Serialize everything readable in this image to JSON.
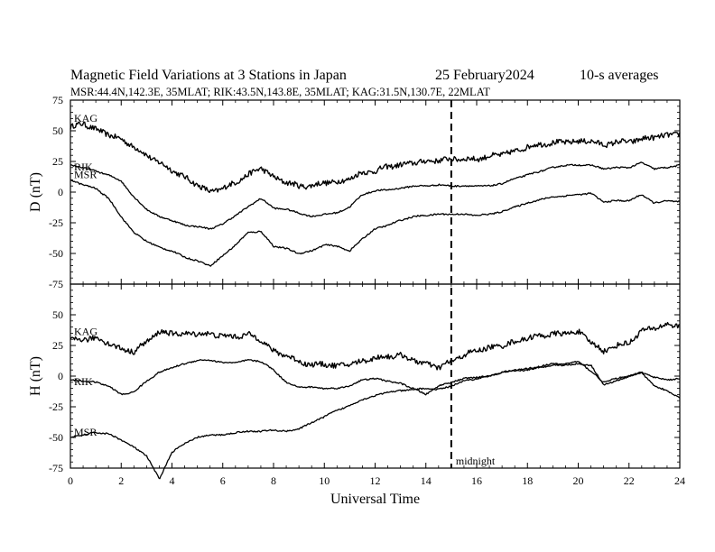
{
  "header": {
    "title": "Magnetic Field Variations at 3 Stations in Japan",
    "date": "25 February2024",
    "averaging": "10-s averages",
    "stations_line": "MSR:44.4N,142.3E, 35MLAT;  RIK:43.5N,143.8E, 35MLAT;  KAG:31.5N,130.7E, 22MLAT"
  },
  "annotation": {
    "midnight_label": "midnight",
    "midnight_ut": 15
  },
  "chart_data": [
    {
      "type": "line",
      "panel": "D",
      "ylabel": "D (nT)",
      "xlabel": "",
      "xlim": [
        0,
        24
      ],
      "ylim": [
        -75,
        75
      ],
      "yticks": [
        75,
        50,
        25,
        0,
        -25,
        -50,
        -75
      ],
      "ytick_labels": [
        "75",
        "50",
        "25",
        "0",
        "-25",
        "-50",
        "-75"
      ],
      "x": [
        0,
        0.5,
        1,
        1.5,
        2,
        2.5,
        3,
        3.5,
        4,
        4.5,
        5,
        5.5,
        6,
        6.5,
        7,
        7.5,
        8,
        8.5,
        9,
        9.5,
        10,
        10.5,
        11,
        11.5,
        12,
        12.5,
        13,
        13.5,
        14,
        14.5,
        15,
        15.5,
        16,
        16.5,
        17,
        17.5,
        18,
        18.5,
        19,
        19.5,
        20,
        20.5,
        21,
        21.5,
        22,
        22.5,
        23,
        23.5,
        24
      ],
      "series": [
        {
          "name": "KAG",
          "noise": 2.2,
          "values": [
            53,
            56,
            51,
            47,
            43,
            37,
            30,
            24,
            18,
            12,
            6,
            0,
            3,
            8,
            14,
            20,
            12,
            8,
            5,
            5,
            8,
            8,
            11,
            16,
            17,
            21,
            22,
            24,
            25,
            26,
            27,
            27,
            27,
            29,
            31,
            33,
            37,
            39,
            40,
            41,
            41,
            42,
            38,
            41,
            41,
            43,
            45,
            46,
            48
          ]
        },
        {
          "name": "RIK",
          "noise": 0.6,
          "values": [
            22,
            20,
            17,
            14,
            9,
            -4,
            -14,
            -20,
            -23,
            -27,
            -28,
            -30,
            -26,
            -19,
            -12,
            -5,
            -13,
            -14,
            -17,
            -20,
            -18,
            -17,
            -12,
            -2,
            1,
            2,
            3,
            5,
            5,
            6,
            5,
            5,
            5,
            5,
            7,
            11,
            14,
            17,
            20,
            22,
            22,
            22,
            19,
            20,
            20,
            24,
            19,
            20,
            22
          ]
        },
        {
          "name": "MSR",
          "noise": 0.6,
          "values": [
            10,
            6,
            3,
            -5,
            -20,
            -33,
            -40,
            -45,
            -48,
            -53,
            -56,
            -60,
            -52,
            -43,
            -33,
            -32,
            -44,
            -46,
            -50,
            -48,
            -43,
            -44,
            -48,
            -38,
            -30,
            -27,
            -23,
            -20,
            -19,
            -18,
            -18,
            -18,
            -19,
            -18,
            -16,
            -12,
            -9,
            -6,
            -4,
            -3,
            -2,
            -1,
            -8,
            -7,
            -7,
            -2,
            -9,
            -7,
            -8
          ]
        }
      ]
    },
    {
      "type": "line",
      "panel": "H",
      "ylabel": "H (nT)",
      "xlabel": "Universal Time",
      "xlim": [
        0,
        24
      ],
      "ylim": [
        -75,
        75
      ],
      "yticks": [
        75,
        50,
        25,
        0,
        -25,
        -50,
        -75
      ],
      "ytick_labels": [
        "",
        "50",
        "25",
        "0",
        "-25",
        "-50",
        "-75"
      ],
      "xticks": [
        0,
        2,
        4,
        6,
        8,
        10,
        12,
        14,
        16,
        18,
        20,
        22,
        24
      ],
      "xtick_labels": [
        "0",
        "2",
        "4",
        "6",
        "8",
        "10",
        "12",
        "14",
        "16",
        "18",
        "20",
        "22",
        "24"
      ],
      "x": [
        0,
        0.5,
        1,
        1.5,
        2,
        2.5,
        3,
        3.5,
        4,
        4.5,
        5,
        5.5,
        6,
        6.5,
        7,
        7.5,
        8,
        8.5,
        9,
        9.5,
        10,
        10.5,
        11,
        11.5,
        12,
        12.5,
        13,
        13.5,
        14,
        14.5,
        15,
        15.5,
        16,
        16.5,
        17,
        17.5,
        18,
        18.5,
        19,
        19.5,
        20,
        20.5,
        21,
        21.5,
        22,
        22.5,
        23,
        23.5,
        24
      ],
      "series": [
        {
          "name": "KAG",
          "noise": 2.2,
          "values": [
            29,
            30,
            31,
            27,
            22,
            20,
            28,
            36,
            35,
            34,
            35,
            34,
            33,
            32,
            34,
            30,
            20,
            17,
            12,
            9,
            10,
            8,
            10,
            12,
            15,
            16,
            17,
            13,
            10,
            7,
            12,
            17,
            21,
            23,
            25,
            28,
            31,
            33,
            34,
            35,
            36,
            28,
            20,
            25,
            27,
            37,
            39,
            42,
            41
          ]
        },
        {
          "name": "RIK",
          "noise": 0.6,
          "values": [
            -3,
            -4,
            -5,
            -8,
            -15,
            -13,
            -4,
            3,
            7,
            10,
            13,
            13,
            11,
            11,
            13,
            12,
            5,
            -5,
            -9,
            -9,
            -10,
            -10,
            -8,
            -3,
            -2,
            -4,
            -6,
            -10,
            -15,
            -8,
            -5,
            -2,
            -1,
            0,
            3,
            4,
            5,
            7,
            9,
            9,
            10,
            9,
            -7,
            -4,
            0,
            3,
            -1,
            -3,
            -2
          ]
        },
        {
          "name": "MSR",
          "noise": 0.6,
          "values": [
            -50,
            -48,
            -46,
            -47,
            -52,
            -58,
            -65,
            -84,
            -62,
            -55,
            -50,
            -48,
            -48,
            -46,
            -45,
            -45,
            -44,
            -45,
            -43,
            -38,
            -33,
            -28,
            -24,
            -19,
            -16,
            -13,
            -12,
            -11,
            -10,
            -11,
            -8,
            -4,
            -2,
            0,
            3,
            5,
            6,
            8,
            10,
            10,
            12,
            4,
            -5,
            -2,
            0,
            3,
            -8,
            -12,
            -18
          ]
        }
      ]
    }
  ]
}
